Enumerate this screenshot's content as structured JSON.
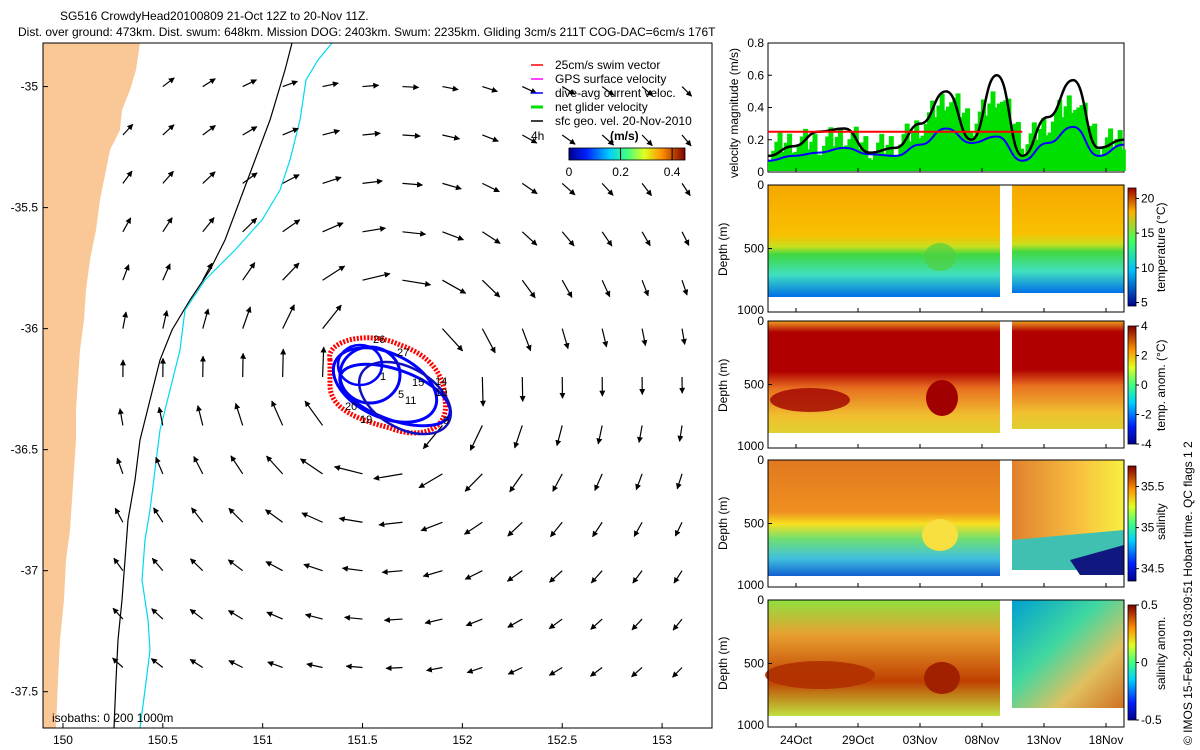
{
  "header": {
    "line1": "SG516 CrowdyHead20100809 21-Oct 12Z to 20-Nov 11Z.",
    "line2": "Dist. over ground: 473km. Dist. swum: 648km. Mission DOG: 2403km. Swum: 2235km. Gliding 3cm/s 211T COG-DAC=6cm/s 176T"
  },
  "copyright": "© IMOS 15-Feb-2019 03:09:51 Hobart time. QC flags 1  2",
  "colors": {
    "land": "#f9c896",
    "swim": "#ff0000",
    "gps": "#ff00ff",
    "dac": "#0000ff",
    "net": "#00e000",
    "geo": "#000000",
    "shelf": "#00d8f0"
  },
  "chart_data": [
    {
      "type": "map",
      "name": "track-map",
      "x_ticks": [
        "150",
        "150.5",
        "151",
        "151.5",
        "152",
        "152.5",
        "153"
      ],
      "x_values": [
        150,
        150.5,
        151,
        151.5,
        152,
        152.5,
        153
      ],
      "y_ticks": [
        "-35",
        "-35.5",
        "-36",
        "-36.5",
        "-37",
        "-37.5"
      ],
      "y_values": [
        -35,
        -35.5,
        -36,
        -36.5,
        -37,
        -37.5
      ],
      "xlim": [
        149.9,
        153.25
      ],
      "ylim": [
        -37.65,
        -34.82
      ],
      "legend": [
        {
          "label": "25cm/s swim vector",
          "color": "#ff0000"
        },
        {
          "label": "GPS surface velocity",
          "color": "#ff00ff"
        },
        {
          "label": "dive-avg current veloc.",
          "color": "#0000ff"
        },
        {
          "label": "net glider velocity",
          "color": "#00e000"
        },
        {
          "label": "sfc geo. vel. 20-Nov-2010",
          "color": "#000000"
        }
      ],
      "interval_label": "4h",
      "colorbar": {
        "title": "(m/s)",
        "ticks": [
          "0",
          "0.2",
          "0.4"
        ],
        "range": [
          0,
          0.45
        ]
      },
      "isobaths_label": "isobaths: 0   200  1000m",
      "eddy_center": [
        151.62,
        -36.21
      ],
      "track_labels": [
        "26",
        "27",
        "1",
        "14",
        "10",
        "5",
        "15",
        "11",
        "20",
        "19",
        "9"
      ]
    },
    {
      "type": "line",
      "name": "velocity-magnitude",
      "ylabel": "velocity magnitude (m/s)",
      "ylim": [
        0,
        0.8
      ],
      "y_ticks": [
        "0",
        "0.2",
        "0.4",
        "0.6",
        "0.8"
      ],
      "x_days": [
        24,
        26,
        28,
        30,
        32,
        34,
        36,
        38,
        40,
        42,
        44,
        46,
        48,
        50,
        52
      ],
      "series": [
        {
          "name": "sfc geo. vel.",
          "color": "#000000",
          "values": [
            0.1,
            0.16,
            0.25,
            0.27,
            0.12,
            0.15,
            0.3,
            0.5,
            0.2,
            0.6,
            0.1,
            0.34,
            0.57,
            0.15,
            0.2
          ]
        },
        {
          "name": "dive-avg current",
          "color": "#0000ff",
          "values": [
            0.07,
            0.1,
            0.12,
            0.15,
            0.11,
            0.1,
            0.17,
            0.27,
            0.18,
            0.22,
            0.07,
            0.18,
            0.28,
            0.1,
            0.17
          ]
        },
        {
          "name": "net glider velocity",
          "color": "#00e000",
          "values": [
            0.15,
            0.2,
            0.18,
            0.24,
            0.15,
            0.18,
            0.3,
            0.48,
            0.3,
            0.5,
            0.18,
            0.32,
            0.46,
            0.18,
            0.22
          ]
        }
      ],
      "reference_line": {
        "value": 0.25,
        "color": "#ff0000"
      }
    },
    {
      "type": "heatmap",
      "name": "temperature",
      "ylabel": "Depth (m)",
      "cb_label": "temperature (°C)",
      "cb_ticks": [
        "5",
        "10",
        "15",
        "20"
      ],
      "cb_range": [
        4.5,
        21.5
      ],
      "y_ticks": [
        "0",
        "500",
        "1000"
      ]
    },
    {
      "type": "heatmap",
      "name": "temp-anomaly",
      "ylabel": "Depth (m)",
      "cb_label": "temp. anom. (°C)",
      "cb_ticks": [
        "-4",
        "-2",
        "0",
        "2",
        "4"
      ],
      "cb_range": [
        -4,
        4
      ],
      "y_ticks": [
        "0",
        "500",
        "1000"
      ]
    },
    {
      "type": "heatmap",
      "name": "salinity",
      "ylabel": "Depth (m)",
      "cb_label": "salinity",
      "cb_ticks": [
        "34.5",
        "35",
        "35.5"
      ],
      "cb_range": [
        34.35,
        35.75
      ],
      "y_ticks": [
        "0",
        "500",
        "1000"
      ]
    },
    {
      "type": "heatmap",
      "name": "salinity-anomaly",
      "ylabel": "Depth (m)",
      "cb_label": "salinity anom.",
      "cb_ticks": [
        "-0.5",
        "0",
        "0.5"
      ],
      "cb_range": [
        -0.5,
        0.5
      ],
      "y_ticks": [
        "0",
        "500",
        "1000"
      ],
      "x_ticks": [
        "24Oct",
        "29Oct",
        "03Nov",
        "08Nov",
        "13Nov",
        "18Nov"
      ]
    }
  ]
}
